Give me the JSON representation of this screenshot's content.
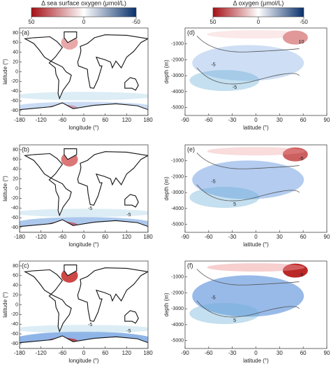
{
  "chart_data": [
    {
      "type": "colorbar",
      "title": "Δ sea surface oxygen (μmol/L)",
      "xlim": [
        50,
        -50
      ],
      "xticks": [
        50,
        0,
        -50
      ],
      "colors": [
        "#a50f15",
        "#ffffff",
        "#08306b"
      ]
    },
    {
      "type": "colorbar",
      "title": "Δ oxygen (μmol/L)",
      "xlim": [
        50,
        -50
      ],
      "xticks": [
        50,
        0,
        -50
      ],
      "colors": [
        "#a50f15",
        "#ffffff",
        "#08306b"
      ]
    },
    {
      "type": "map",
      "title": "(a)",
      "xlabel": "longitude (°)",
      "ylabel": "latitude (°)",
      "xlim": [
        -180,
        180
      ],
      "xticks": [
        -180,
        -120,
        -60,
        0,
        60,
        120,
        180
      ],
      "ylim": [
        -90,
        90
      ],
      "yticks": [
        -80,
        -60,
        -40,
        -20,
        0,
        20,
        40,
        60,
        80
      ],
      "annotations": []
    },
    {
      "type": "section",
      "title": "(d)",
      "xlabel": "latitude (°)",
      "ylabel": "depth (m)",
      "xlim": [
        -90,
        90
      ],
      "xticks": [
        -90,
        -60,
        -30,
        0,
        30,
        60,
        90
      ],
      "ylim": [
        -5500,
        0
      ],
      "yticks": [
        -1000,
        -2000,
        -3000,
        -4000,
        -5000
      ],
      "annotations": [
        "10",
        "-5",
        "-5"
      ]
    },
    {
      "type": "map",
      "title": "(b)",
      "xlabel": "longitude (°)",
      "ylabel": "latitude (°)",
      "xlim": [
        -180,
        180
      ],
      "xticks": [
        -180,
        -120,
        -60,
        0,
        60,
        120,
        180
      ],
      "ylim": [
        -90,
        90
      ],
      "yticks": [
        -80,
        -60,
        -40,
        -20,
        0,
        20,
        40,
        60,
        80
      ],
      "annotations": [
        "-5",
        "-5"
      ]
    },
    {
      "type": "section",
      "title": "(e)",
      "xlabel": "latitude (°)",
      "ylabel": "depth (m)",
      "xlim": [
        -90,
        90
      ],
      "xticks": [
        -90,
        -60,
        -30,
        0,
        30,
        60,
        90
      ],
      "ylim": [
        -5500,
        0
      ],
      "yticks": [
        -1000,
        -2000,
        -3000,
        -4000,
        -5000
      ],
      "annotations": [
        "-5",
        "-5",
        "5"
      ]
    },
    {
      "type": "map",
      "title": "(c)",
      "xlabel": "longitude (°)",
      "ylabel": "latitude (°)",
      "xlim": [
        -180,
        180
      ],
      "xticks": [
        -180,
        -120,
        -60,
        0,
        60,
        120,
        180
      ],
      "ylim": [
        -90,
        90
      ],
      "yticks": [
        -80,
        -60,
        -40,
        -20,
        0,
        20,
        40,
        60,
        80
      ],
      "annotations": [
        "-5",
        "-5"
      ]
    },
    {
      "type": "section",
      "title": "(f)",
      "xlabel": "latitude (°)",
      "ylabel": "depth (m)",
      "xlim": [
        -90,
        90
      ],
      "xticks": [
        -90,
        -60,
        -30,
        0,
        30,
        60,
        90
      ],
      "ylim": [
        -5500,
        0
      ],
      "yticks": [
        -1000,
        -2000,
        -3000,
        -4000,
        -5000
      ],
      "annotations": [
        "-5",
        "-5",
        "5"
      ]
    }
  ]
}
